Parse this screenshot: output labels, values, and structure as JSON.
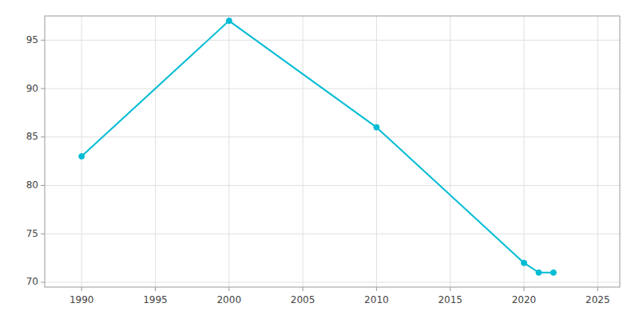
{
  "chart_data": {
    "type": "line",
    "x": [
      1990,
      2000,
      2010,
      2020,
      2021,
      2022
    ],
    "values": [
      83,
      97,
      86,
      72,
      71,
      71
    ],
    "color": "#00bcd4",
    "marker": "circle",
    "xlim": [
      1987.5,
      2026.5
    ],
    "ylim": [
      69.5,
      97.5
    ],
    "xticks": [
      1990,
      1995,
      2000,
      2005,
      2010,
      2015,
      2020,
      2025
    ],
    "yticks": [
      70,
      75,
      80,
      85,
      90,
      95
    ],
    "grid": true
  }
}
